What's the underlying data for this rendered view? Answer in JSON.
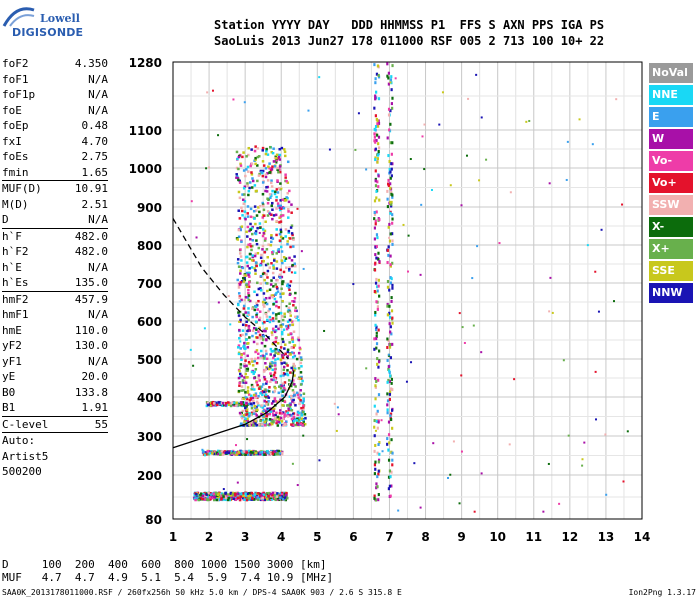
{
  "logo": {
    "line1": "Lowell",
    "line2": "DIGISONDE"
  },
  "header": {
    "line1": "Station YYYY DAY   DDD HHMMSS P1  FFS S AXN PPS IGA PS",
    "line2": "SaoLuis 2013 Jun27 178 011000 RSF 005 2 713 100 10+ 22"
  },
  "params": [
    {
      "name": "foF2",
      "value": "4.350"
    },
    {
      "name": "foF1",
      "value": "N/A"
    },
    {
      "name": "foF1p",
      "value": "N/A"
    },
    {
      "name": "foE",
      "value": "N/A"
    },
    {
      "name": "foEp",
      "value": "0.48"
    },
    {
      "name": "fxI",
      "value": "4.70"
    },
    {
      "name": "foEs",
      "value": "2.75"
    },
    {
      "name": "fmin",
      "value": "1.65"
    },
    {
      "name": "MUF(D)",
      "value": "10.91",
      "sep": true
    },
    {
      "name": "M(D)",
      "value": "2.51"
    },
    {
      "name": "D",
      "value": "N/A"
    },
    {
      "name": "h`F",
      "value": "482.0",
      "sep": true
    },
    {
      "name": "h`F2",
      "value": "482.0"
    },
    {
      "name": "h`E",
      "value": "N/A"
    },
    {
      "name": "h`Es",
      "value": "135.0"
    },
    {
      "name": "hmF2",
      "value": "457.9",
      "sep": true
    },
    {
      "name": "hmF1",
      "value": "N/A"
    },
    {
      "name": "hmE",
      "value": "110.0"
    },
    {
      "name": "yF2",
      "value": "130.0"
    },
    {
      "name": "yF1",
      "value": "N/A"
    },
    {
      "name": "yE",
      "value": "20.0"
    },
    {
      "name": "B0",
      "value": "133.8"
    },
    {
      "name": "B1",
      "value": "1.91"
    },
    {
      "name": "C-level",
      "value": "55",
      "sep": true
    },
    {
      "name": "Auto:",
      "value": "",
      "sep": true
    },
    {
      "name": "Artist5",
      "value": ""
    },
    {
      "name": "500200",
      "value": ""
    }
  ],
  "legend": [
    {
      "label": "NoVal",
      "color": "#9a9a9a"
    },
    {
      "label": "NNE",
      "color": "#19d8f5"
    },
    {
      "label": "E",
      "color": "#3aa0ee"
    },
    {
      "label": "W",
      "color": "#a810a8"
    },
    {
      "label": "Vo-",
      "color": "#ee3ca8"
    },
    {
      "label": "Vo+",
      "color": "#e4122c"
    },
    {
      "label": "SSW",
      "color": "#f2b0b0"
    },
    {
      "label": "X-",
      "color": "#0c6c0c"
    },
    {
      "label": "X+",
      "color": "#68b04c"
    },
    {
      "label": "SSE",
      "color": "#c8c81c"
    },
    {
      "label": "NNW",
      "color": "#1a14b4"
    }
  ],
  "footer": {
    "line1": "D     100  200  400  600  800 1000 1500 3000 [km]",
    "line2": "MUF   4.7  4.7  4.9  5.1  5.4  5.9  7.4 10.9 [MHz]",
    "line3": "SAA0K_2013178011000.RSF / 260fx256h 50 kHz 5.0 km / DPS-4 SAA0K 903 / 2.6 S 315.8 E",
    "line4": "Ion2Png 1.3.17"
  },
  "chart_data": {
    "type": "scatter",
    "x_ticks": [
      "1",
      "2",
      "3",
      "4",
      "5",
      "6",
      "7",
      "8",
      "9",
      "10",
      "11",
      "12",
      "13",
      "14"
    ],
    "y_ticks": [
      "80",
      "200",
      "300",
      "400",
      "500",
      "600",
      "700",
      "800",
      "900",
      "1000",
      "1100",
      "1280"
    ],
    "xlim": [
      1,
      14
    ],
    "ylim": [
      80,
      1280
    ],
    "grid": true,
    "clusters": [
      {
        "color": "multi",
        "x": [
          1.55,
          4.15
        ],
        "y": [
          135,
          155
        ]
      },
      {
        "color": "multi",
        "x": [
          1.8,
          4.0
        ],
        "y": [
          255,
          265
        ]
      },
      {
        "color": "multi",
        "x": [
          2.6,
          4.7
        ],
        "y": [
          330,
          1060
        ]
      },
      {
        "color": "multi",
        "x": [
          1.9,
          3.1
        ],
        "y": [
          380,
          390
        ]
      },
      {
        "color": "multi",
        "x": [
          6.5,
          7.2
        ],
        "y": [
          130,
          1280
        ]
      }
    ],
    "trace_solid": [
      [
        1.0,
        270
      ],
      [
        2.0,
        300
      ],
      [
        3.0,
        330
      ],
      [
        3.6,
        360
      ],
      [
        4.1,
        400
      ],
      [
        4.3,
        440
      ],
      [
        4.35,
        470
      ]
    ],
    "trace_dashed": [
      [
        1.0,
        870
      ],
      [
        1.8,
        740
      ],
      [
        2.4,
        670
      ],
      [
        3.0,
        610
      ],
      [
        3.5,
        570
      ],
      [
        3.9,
        530
      ],
      [
        4.2,
        500
      ]
    ]
  }
}
